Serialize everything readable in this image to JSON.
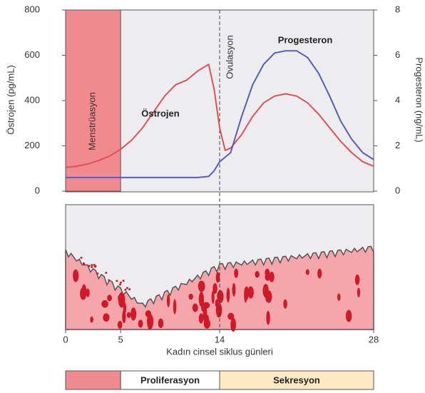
{
  "chart_data": {
    "type": "line",
    "ylabel": "Östrojen (pg/mL)",
    "y2label": "Progesteron (ng/mL)",
    "xlabel": "Kadın cinsel siklus günleri",
    "x": [
      0,
      1,
      2,
      3,
      4,
      5,
      6,
      7,
      8,
      9,
      10,
      11,
      12,
      13,
      13.5,
      14,
      14.5,
      15,
      16,
      17,
      18,
      19,
      20,
      21,
      22,
      23,
      24,
      25,
      26,
      27,
      28
    ],
    "series": [
      {
        "name": "Östrojen",
        "color": "#e0505a",
        "values": [
          105,
          110,
          120,
          135,
          155,
          185,
          225,
          280,
          350,
          420,
          470,
          490,
          530,
          560,
          450,
          280,
          180,
          190,
          250,
          330,
          390,
          420,
          430,
          420,
          390,
          340,
          280,
          220,
          170,
          130,
          110
        ]
      },
      {
        "name": "Progesteron",
        "color": "#5a5ab8",
        "axis": "y2",
        "values": [
          0.6,
          0.6,
          0.6,
          0.6,
          0.6,
          0.6,
          0.6,
          0.6,
          0.6,
          0.6,
          0.6,
          0.6,
          0.6,
          0.65,
          0.9,
          1.3,
          1.5,
          1.7,
          3.3,
          4.7,
          5.6,
          6.1,
          6.2,
          6.2,
          5.9,
          5.2,
          4.2,
          3.1,
          2.3,
          1.7,
          1.4
        ]
      }
    ],
    "annotations": [
      "Menstrüasyon",
      "Ovulasyon"
    ],
    "xlim": [
      0,
      28
    ],
    "xticks": [
      0,
      5,
      14,
      28
    ],
    "ylim": [
      0,
      800
    ],
    "yticks": [
      0,
      200,
      400,
      600,
      800
    ],
    "y2lim": [
      0,
      8
    ],
    "y2ticks": [
      0,
      2,
      4,
      6,
      8
    ],
    "shaded_range": [
      0,
      5
    ],
    "ovulation_x": 14,
    "phases": [
      {
        "range": [
          0,
          5
        ],
        "color": "#f08a8f"
      },
      {
        "label": "Proliferasyon",
        "range": [
          5,
          14
        ],
        "color": "#ffffff"
      },
      {
        "label": "Sekresyon",
        "range": [
          14,
          28
        ],
        "color": "#fde9c4"
      }
    ]
  }
}
